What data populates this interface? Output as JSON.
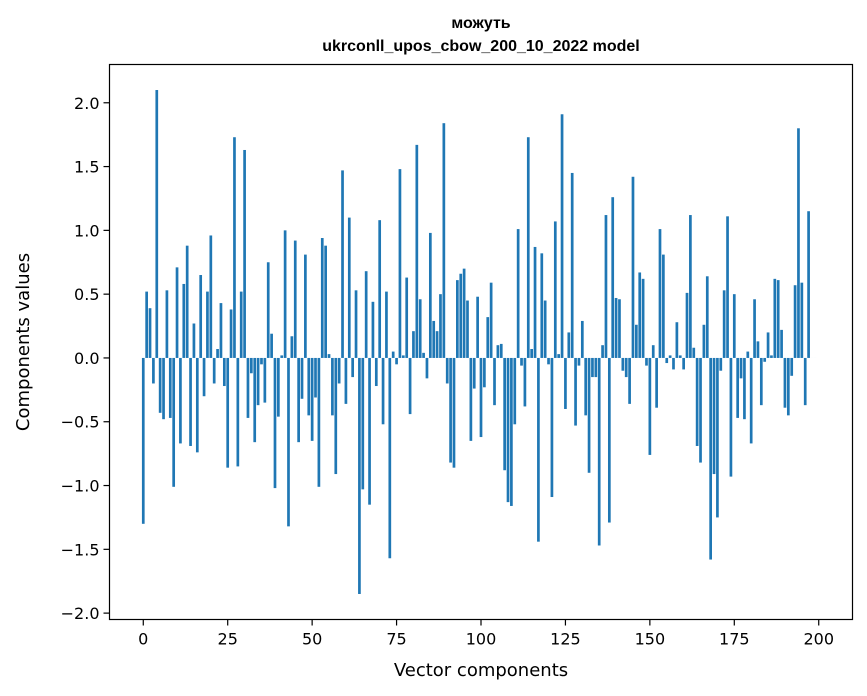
{
  "chart_data": {
    "type": "bar",
    "title": "можуть",
    "subtitle": "ukrconll_upos_cbow_200_10_2022 model",
    "xlabel": "Vector components",
    "ylabel": "Components values",
    "xlim": [
      -10,
      210
    ],
    "ylim": [
      -2.05,
      2.3
    ],
    "xticks": [
      0,
      25,
      50,
      75,
      100,
      125,
      150,
      175,
      200
    ],
    "yticks": [
      -2.0,
      -1.5,
      -1.0,
      -0.5,
      0.0,
      0.5,
      1.0,
      1.5,
      2.0
    ],
    "ytick_labels": [
      "−2.0",
      "−1.5",
      "−1.0",
      "−0.5",
      "0.0",
      "0.5",
      "1.0",
      "1.5",
      "2.0"
    ],
    "bar_color": "#1f77b4",
    "grid": false,
    "values": [
      -1.3,
      0.52,
      0.39,
      -0.2,
      2.1,
      -0.43,
      -0.48,
      0.53,
      -0.47,
      -1.01,
      0.71,
      -0.67,
      0.58,
      0.88,
      -0.69,
      0.27,
      -0.74,
      0.65,
      -0.3,
      0.52,
      0.96,
      -0.2,
      0.07,
      0.43,
      -0.22,
      -0.86,
      0.38,
      1.73,
      -0.85,
      0.52,
      1.63,
      -0.47,
      -0.12,
      -0.66,
      -0.37,
      -0.05,
      -0.35,
      0.75,
      0.19,
      -1.02,
      -0.46,
      0.02,
      1.0,
      -1.32,
      0.17,
      0.92,
      -0.66,
      -0.32,
      0.81,
      -0.45,
      -0.65,
      -0.31,
      -1.01,
      0.94,
      0.88,
      0.03,
      -0.45,
      -0.91,
      -0.2,
      1.47,
      -0.36,
      1.1,
      -0.15,
      0.53,
      -1.85,
      -1.03,
      0.68,
      -1.15,
      0.44,
      -0.22,
      1.08,
      -0.52,
      0.52,
      -1.57,
      0.05,
      -0.05,
      1.48,
      0.02,
      0.63,
      -0.44,
      0.21,
      1.67,
      0.46,
      0.04,
      -0.16,
      0.98,
      0.29,
      0.21,
      0.5,
      1.84,
      -0.2,
      -0.82,
      -0.86,
      0.61,
      0.66,
      0.7,
      0.45,
      -0.65,
      -0.24,
      0.48,
      -0.62,
      -0.23,
      0.32,
      0.59,
      -0.37,
      0.1,
      0.11,
      -0.88,
      -1.13,
      -1.16,
      -0.52,
      1.01,
      -0.06,
      -0.38,
      1.73,
      0.07,
      0.87,
      -1.44,
      0.82,
      0.45,
      -0.05,
      -1.09,
      1.07,
      0.03,
      1.91,
      -0.4,
      0.2,
      1.45,
      -0.53,
      -0.06,
      0.29,
      -0.45,
      -0.9,
      -0.15,
      -0.15,
      -1.47,
      0.1,
      1.12,
      -1.29,
      1.26,
      0.47,
      0.46,
      -0.1,
      -0.15,
      -0.36,
      1.42,
      0.26,
      0.67,
      0.62,
      -0.06,
      -0.76,
      0.1,
      -0.39,
      1.01,
      0.81,
      -0.04,
      0.02,
      -0.09,
      0.28,
      0.02,
      -0.09,
      0.51,
      1.12,
      0.08,
      -0.69,
      -0.82,
      0.26,
      0.64,
      -1.58,
      -0.91,
      -1.25,
      -0.1,
      0.53,
      1.11,
      -0.93,
      0.5,
      -0.47,
      -0.16,
      -0.48,
      0.05,
      -0.67,
      0.46,
      0.13,
      -0.37,
      -0.03,
      0.2,
      0.02,
      0.62,
      0.61,
      0.22,
      -0.39,
      -0.45,
      -0.14,
      0.57,
      1.8,
      0.59,
      -0.37,
      1.15,
      0.0,
      0.0
    ]
  }
}
